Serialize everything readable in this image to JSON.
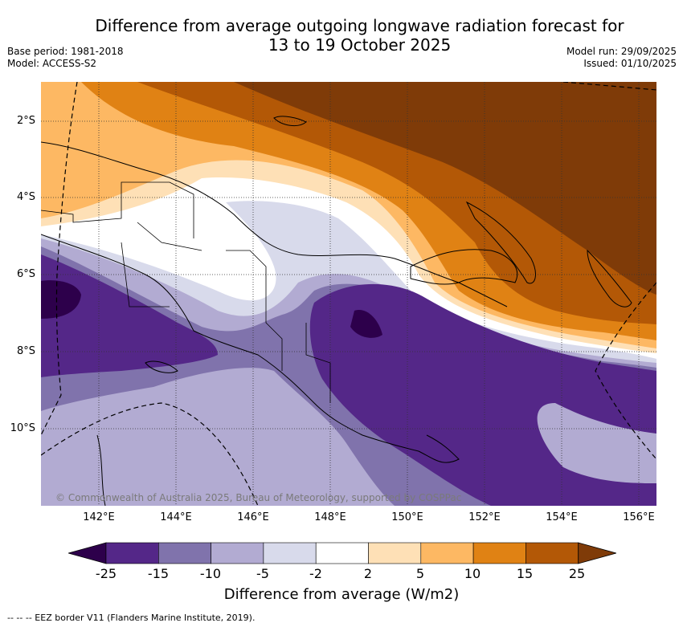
{
  "title_line1": "Difference from average outgoing longwave radiation forecast for",
  "title_line2": "13 to 19 October 2025",
  "meta_left": {
    "base_period": "Base period: 1981-2018",
    "model": "Model: ACCESS-S2"
  },
  "meta_right": {
    "model_run": "Model run: 29/09/2025",
    "issued": "Issued: 01/10/2025"
  },
  "lat_labels": [
    "2°S",
    "4°S",
    "6°S",
    "8°S",
    "10°S"
  ],
  "lon_labels": [
    "142°E",
    "144°E",
    "146°E",
    "148°E",
    "150°E",
    "152°E",
    "154°E",
    "156°E"
  ],
  "copyright": "© Commonwealth of Australia 2025, Bureau of Meteorology, supported by COSPPac",
  "colorbar": {
    "ticks": [
      "-25",
      "-15",
      "-10",
      "-5",
      "-2",
      "2",
      "5",
      "10",
      "15",
      "25"
    ],
    "label": "Difference from average (W/m2)",
    "colors": [
      "#2d004b",
      "#542788",
      "#8073ac",
      "#b2abd2",
      "#d8daeb",
      "#ffffff",
      "#fee0b6",
      "#fdb863",
      "#e08214",
      "#b35806",
      "#7f3b08"
    ]
  },
  "footnote": "--  --  -- EEZ border V11 (Flanders Marine Institute, 2019)."
}
